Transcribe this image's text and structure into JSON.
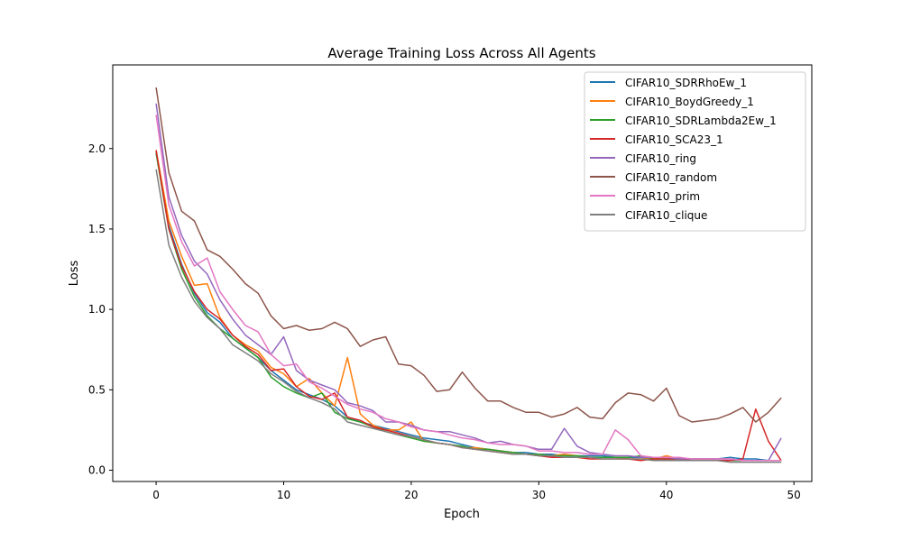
{
  "chart_data": {
    "type": "line",
    "title": "Average Training Loss Across All Agents",
    "xlabel": "Epoch",
    "ylabel": "Loss",
    "xlim": [
      -3.4,
      51.4
    ],
    "ylim": [
      -0.07,
      2.52
    ],
    "xticks": [
      0,
      10,
      20,
      30,
      40,
      50
    ],
    "xtick_labels": [
      "0",
      "10",
      "20",
      "30",
      "40",
      "50"
    ],
    "yticks": [
      0.0,
      0.5,
      1.0,
      1.5,
      2.0
    ],
    "ytick_labels": [
      "0.0",
      "0.5",
      "1.0",
      "1.5",
      "2.0"
    ],
    "grid": false,
    "legend_position": "top-right",
    "x": [
      0,
      1,
      2,
      3,
      4,
      5,
      6,
      7,
      8,
      9,
      10,
      11,
      12,
      13,
      14,
      15,
      16,
      17,
      18,
      19,
      20,
      21,
      22,
      23,
      24,
      25,
      26,
      27,
      28,
      29,
      30,
      31,
      32,
      33,
      34,
      35,
      36,
      37,
      38,
      39,
      40,
      41,
      42,
      43,
      44,
      45,
      46,
      47,
      48,
      49
    ],
    "series": [
      {
        "name": "CIFAR10_SDRRhoEw_1",
        "color": "#1f77b4",
        "values": [
          1.98,
          1.52,
          1.28,
          1.1,
          0.98,
          0.92,
          0.82,
          0.76,
          0.7,
          0.62,
          0.56,
          0.5,
          0.47,
          0.44,
          0.4,
          0.33,
          0.3,
          0.28,
          0.26,
          0.24,
          0.22,
          0.2,
          0.19,
          0.18,
          0.16,
          0.14,
          0.13,
          0.12,
          0.11,
          0.11,
          0.1,
          0.1,
          0.09,
          0.09,
          0.09,
          0.09,
          0.08,
          0.08,
          0.08,
          0.07,
          0.07,
          0.07,
          0.07,
          0.07,
          0.07,
          0.08,
          0.07,
          0.07,
          0.06,
          0.06
        ]
      },
      {
        "name": "CIFAR10_BoydGreedy_1",
        "color": "#ff7f0e",
        "values": [
          1.99,
          1.55,
          1.33,
          1.15,
          1.16,
          0.95,
          0.84,
          0.78,
          0.74,
          0.64,
          0.6,
          0.52,
          0.57,
          0.48,
          0.4,
          0.7,
          0.35,
          0.28,
          0.25,
          0.25,
          0.3,
          0.18,
          0.17,
          0.16,
          0.14,
          0.14,
          0.13,
          0.12,
          0.11,
          0.1,
          0.1,
          0.09,
          0.1,
          0.09,
          0.08,
          0.08,
          0.08,
          0.07,
          0.07,
          0.07,
          0.09,
          0.07,
          0.06,
          0.07,
          0.06,
          0.06,
          0.06,
          0.06,
          0.06,
          0.06
        ]
      },
      {
        "name": "CIFAR10_SDRLambda2Ew_1",
        "color": "#2ca02c",
        "values": [
          1.97,
          1.5,
          1.25,
          1.08,
          0.96,
          0.88,
          0.82,
          0.76,
          0.7,
          0.58,
          0.52,
          0.48,
          0.45,
          0.48,
          0.36,
          0.32,
          0.3,
          0.27,
          0.24,
          0.22,
          0.2,
          0.18,
          0.17,
          0.16,
          0.15,
          0.13,
          0.13,
          0.12,
          0.11,
          0.1,
          0.1,
          0.09,
          0.09,
          0.09,
          0.08,
          0.08,
          0.08,
          0.08,
          0.09,
          0.07,
          0.07,
          0.07,
          0.06,
          0.06,
          0.06,
          0.06,
          0.06,
          0.06,
          0.06,
          0.06
        ]
      },
      {
        "name": "CIFAR10_SCA23_1",
        "color": "#d62728",
        "values": [
          1.99,
          1.5,
          1.27,
          1.11,
          1.0,
          0.94,
          0.84,
          0.77,
          0.72,
          0.62,
          0.63,
          0.52,
          0.46,
          0.44,
          0.48,
          0.33,
          0.31,
          0.27,
          0.25,
          0.23,
          0.21,
          0.19,
          0.17,
          0.16,
          0.14,
          0.13,
          0.12,
          0.11,
          0.1,
          0.1,
          0.09,
          0.08,
          0.08,
          0.08,
          0.07,
          0.07,
          0.07,
          0.07,
          0.06,
          0.07,
          0.07,
          0.07,
          0.06,
          0.06,
          0.06,
          0.06,
          0.07,
          0.38,
          0.18,
          0.06
        ]
      },
      {
        "name": "CIFAR10_ring",
        "color": "#9467bd",
        "values": [
          2.28,
          1.7,
          1.46,
          1.3,
          1.22,
          1.06,
          0.94,
          0.84,
          0.78,
          0.72,
          0.83,
          0.62,
          0.56,
          0.53,
          0.5,
          0.42,
          0.4,
          0.37,
          0.3,
          0.3,
          0.28,
          0.25,
          0.24,
          0.24,
          0.22,
          0.2,
          0.17,
          0.18,
          0.16,
          0.15,
          0.13,
          0.13,
          0.26,
          0.15,
          0.11,
          0.1,
          0.09,
          0.09,
          0.08,
          0.08,
          0.08,
          0.07,
          0.07,
          0.07,
          0.07,
          0.07,
          0.06,
          0.06,
          0.06,
          0.2
        ]
      },
      {
        "name": "CIFAR10_random",
        "color": "#8c564b",
        "values": [
          2.38,
          1.85,
          1.61,
          1.55,
          1.37,
          1.33,
          1.25,
          1.16,
          1.1,
          0.96,
          0.88,
          0.9,
          0.87,
          0.88,
          0.92,
          0.88,
          0.77,
          0.81,
          0.83,
          0.66,
          0.65,
          0.59,
          0.49,
          0.5,
          0.61,
          0.51,
          0.43,
          0.43,
          0.39,
          0.36,
          0.36,
          0.33,
          0.35,
          0.39,
          0.33,
          0.32,
          0.42,
          0.48,
          0.47,
          0.43,
          0.51,
          0.34,
          0.3,
          0.31,
          0.32,
          0.35,
          0.39,
          0.3,
          0.36,
          0.45
        ]
      },
      {
        "name": "CIFAR10_prim",
        "color": "#e377c2",
        "values": [
          2.21,
          1.65,
          1.42,
          1.27,
          1.32,
          1.11,
          1.0,
          0.9,
          0.86,
          0.72,
          0.65,
          0.66,
          0.55,
          0.51,
          0.46,
          0.41,
          0.38,
          0.36,
          0.32,
          0.3,
          0.27,
          0.25,
          0.24,
          0.22,
          0.2,
          0.19,
          0.17,
          0.16,
          0.16,
          0.15,
          0.12,
          0.12,
          0.11,
          0.11,
          0.1,
          0.1,
          0.25,
          0.19,
          0.09,
          0.08,
          0.08,
          0.08,
          0.07,
          0.07,
          0.07,
          0.07,
          0.06,
          0.06,
          0.06,
          0.06
        ]
      },
      {
        "name": "CIFAR10_clique",
        "color": "#7f7f7f",
        "values": [
          1.87,
          1.4,
          1.2,
          1.05,
          0.95,
          0.88,
          0.78,
          0.73,
          0.68,
          0.6,
          0.55,
          0.49,
          0.45,
          0.42,
          0.38,
          0.3,
          0.28,
          0.26,
          0.24,
          0.22,
          0.21,
          0.19,
          0.17,
          0.16,
          0.14,
          0.13,
          0.12,
          0.11,
          0.1,
          0.1,
          0.09,
          0.09,
          0.08,
          0.08,
          0.08,
          0.07,
          0.07,
          0.07,
          0.07,
          0.06,
          0.06,
          0.06,
          0.06,
          0.06,
          0.06,
          0.05,
          0.05,
          0.05,
          0.05,
          0.05
        ]
      }
    ]
  }
}
